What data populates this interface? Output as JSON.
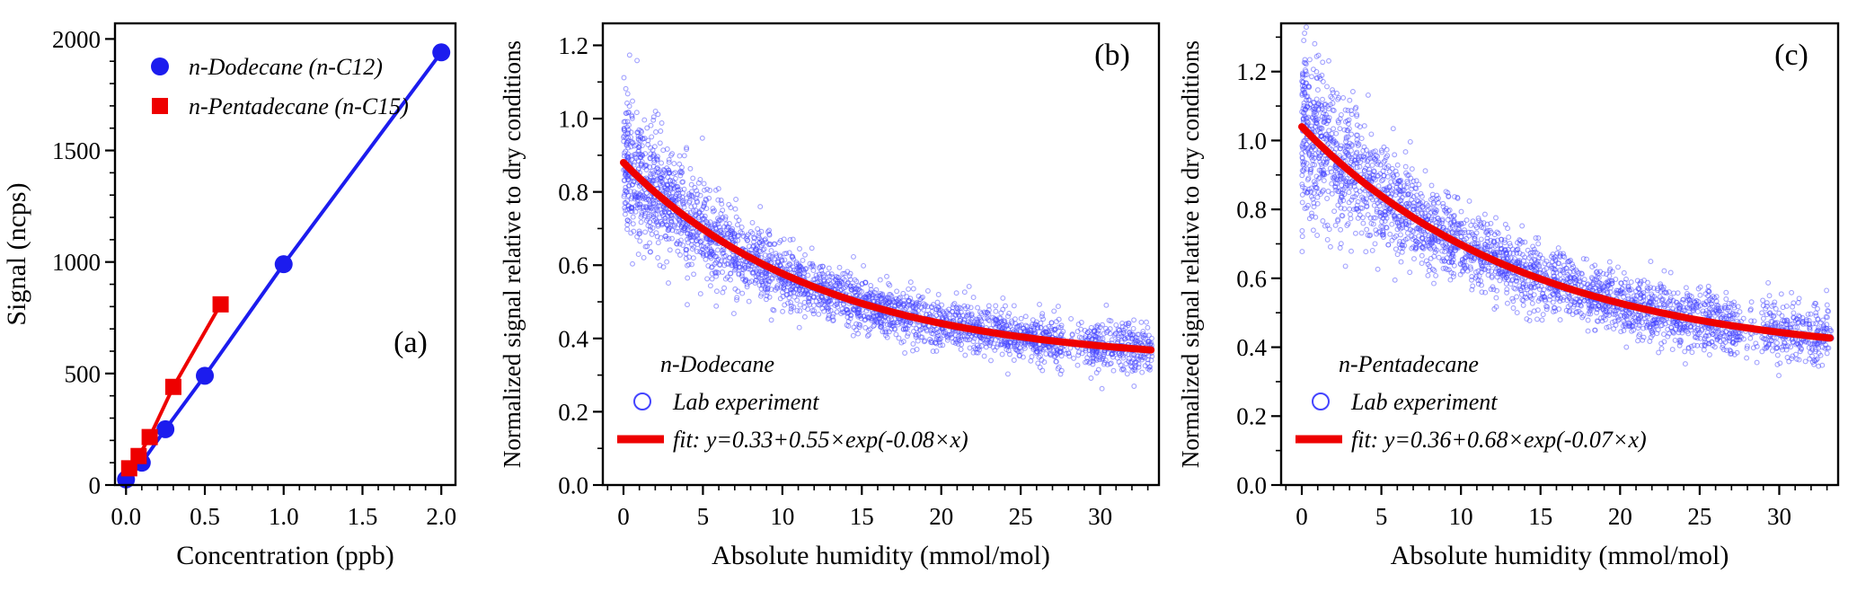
{
  "figure": {
    "background": "#ffffff",
    "panel_ids": [
      "a",
      "b",
      "c"
    ]
  },
  "chart_data": [
    {
      "id": "a",
      "type": "scatter",
      "panel_label": "(a)",
      "xlabel": "Concentration (ppb)",
      "ylabel": "Signal (ncps)",
      "xlim": [
        -0.07,
        2.09
      ],
      "ylim": [
        0,
        2070
      ],
      "xtick_values": [
        0,
        0.5,
        1.0,
        1.5,
        2.0
      ],
      "xtick_labels": [
        "0.0",
        "0.5",
        "1.0",
        "1.5",
        "2.0"
      ],
      "ytick_values": [
        0,
        500,
        1000,
        1500,
        2000
      ],
      "ytick_labels": [
        "0",
        "500",
        "1000",
        "1500",
        "2000"
      ],
      "x_minor_step": 0.1,
      "y_minor_step": 100,
      "grid": false,
      "legend_position": "top-left",
      "series": [
        {
          "name": "n-Dodecane (n-C12)",
          "color": "#1c1cee",
          "marker": "circle",
          "x": [
            0.0,
            0.1,
            0.25,
            0.5,
            1.0,
            2.0
          ],
          "y": [
            25,
            100,
            250,
            490,
            990,
            1940
          ]
        },
        {
          "name": "n-Pentadecane (n-C15)",
          "color": "#ee0000",
          "marker": "square",
          "x": [
            0.02,
            0.08,
            0.15,
            0.3,
            0.6
          ],
          "y": [
            75,
            130,
            215,
            440,
            810
          ]
        }
      ]
    },
    {
      "id": "b",
      "type": "scatter-fit",
      "panel_label": "(b)",
      "xlabel": "Absolute humidity (mmol/mol)",
      "ylabel": "Normalized signal relative to dry conditions",
      "compound": "n-Dodecane",
      "legend_scatter_label": "Lab experiment",
      "legend_fit_label": "fit: y=0.33+0.55×exp(-0.08×x)",
      "fit": {
        "y0": 0.33,
        "amplitude": 0.55,
        "rate": -0.08,
        "x_start": 0,
        "x_end": 33.2
      },
      "xlim": [
        -1.3,
        33.7
      ],
      "ylim": [
        0,
        1.26
      ],
      "xtick_values": [
        0,
        5,
        10,
        15,
        20,
        25,
        30
      ],
      "xtick_labels": [
        "0",
        "5",
        "10",
        "15",
        "20",
        "25",
        "30"
      ],
      "ytick_values": [
        0,
        0.2,
        0.4,
        0.6,
        0.8,
        1.0,
        1.2
      ],
      "ytick_labels": [
        "0.0",
        "0.2",
        "0.4",
        "0.6",
        "0.8",
        "1.0",
        "1.2"
      ],
      "x_minor_step": 1,
      "y_minor_step": 0.1,
      "grid": false,
      "scatter_color": "#4444ff",
      "fit_color": "#ee0000",
      "scatter_model": {
        "seed": 12345,
        "n": 3000,
        "x_max": 33.3,
        "x_power": 1.3,
        "noise_base": 0.032,
        "noise_extra": 0.075,
        "noise_decay": 6,
        "gap_x": [
          27.6,
          29.0
        ],
        "gap_drop": 0.7
      }
    },
    {
      "id": "c",
      "type": "scatter-fit",
      "panel_label": "(c)",
      "xlabel": "Absolute humidity (mmol/mol)",
      "ylabel": "Normalized signal relative to dry conditions",
      "compound": "n-Pentadecane",
      "legend_scatter_label": "Lab experiment",
      "legend_fit_label": "fit: y=0.36+0.68×exp(-0.07×x)",
      "fit": {
        "y0": 0.36,
        "amplitude": 0.68,
        "rate": -0.07,
        "x_start": 0,
        "x_end": 33.2
      },
      "xlim": [
        -1.3,
        33.7
      ],
      "ylim": [
        0,
        1.34
      ],
      "xtick_values": [
        0,
        5,
        10,
        15,
        20,
        25,
        30
      ],
      "xtick_labels": [
        "0",
        "5",
        "10",
        "15",
        "20",
        "25",
        "30"
      ],
      "ytick_values": [
        0,
        0.2,
        0.4,
        0.6,
        0.8,
        1.0,
        1.2
      ],
      "ytick_labels": [
        "0.0",
        "0.2",
        "0.4",
        "0.6",
        "0.8",
        "1.0",
        "1.2"
      ],
      "x_minor_step": 1,
      "y_minor_step": 0.1,
      "grid": false,
      "scatter_color": "#4444ff",
      "fit_color": "#ee0000",
      "scatter_model": {
        "seed": 54321,
        "n": 3000,
        "x_max": 33.3,
        "x_power": 1.3,
        "noise_base": 0.042,
        "noise_extra": 0.08,
        "noise_decay": 6,
        "gap_x": [
          27.6,
          29.0
        ],
        "gap_drop": 0.7
      }
    }
  ]
}
